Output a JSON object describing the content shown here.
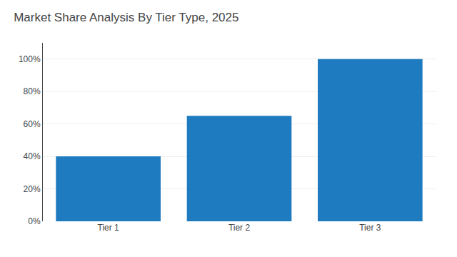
{
  "chart_data": {
    "type": "bar",
    "title": "Market Share Analysis By Tier Type, 2025",
    "categories": [
      "Tier 1",
      "Tier 2",
      "Tier 3"
    ],
    "values": [
      40,
      65,
      100
    ],
    "color": "#1f7bbf",
    "ylim": [
      0,
      110
    ],
    "yticks": [
      {
        "value": 0,
        "label": "0%"
      },
      {
        "value": 20,
        "label": "20%"
      },
      {
        "value": 40,
        "label": "40%"
      },
      {
        "value": 60,
        "label": "60%"
      },
      {
        "value": 80,
        "label": "80%"
      },
      {
        "value": 100,
        "label": "100%"
      }
    ],
    "grid": true
  }
}
